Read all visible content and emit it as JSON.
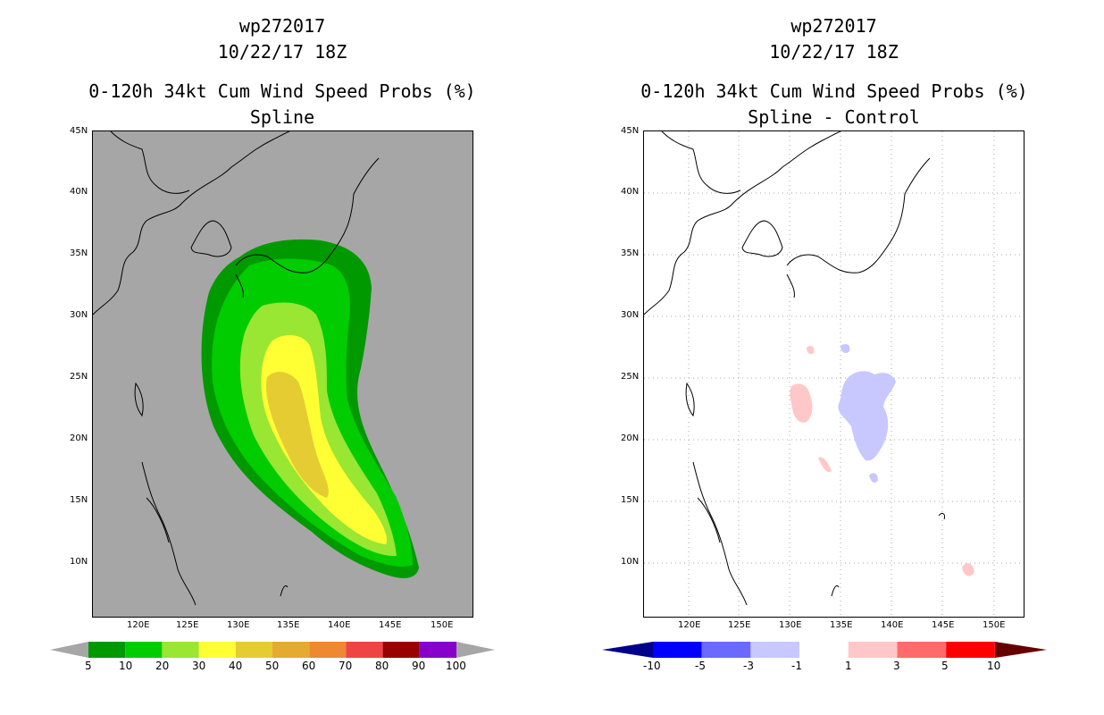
{
  "panels": [
    {
      "storm": "wp272017",
      "date": "10/22/17 18Z",
      "product": "0-120h 34kt Cum Wind Speed Probs (%)",
      "subtitle": "Spline",
      "lat_labels": [
        "45N",
        "40N",
        "35N",
        "30N",
        "25N",
        "20N",
        "15N",
        "10N"
      ],
      "lon_labels": [
        "120E",
        "125E",
        "130E",
        "135E",
        "140E",
        "145E",
        "150E"
      ],
      "colorbar": {
        "labels": [
          "5",
          "10",
          "20",
          "30",
          "40",
          "50",
          "60",
          "70",
          "80",
          "90",
          "100"
        ],
        "colors": [
          "#009900",
          "#00cc00",
          "#99e633",
          "#ffff33",
          "#e6cc33",
          "#e6aa33",
          "#ee8833",
          "#ee4444",
          "#990000",
          "#8800cc"
        ]
      }
    },
    {
      "storm": "wp272017",
      "date": "10/22/17 18Z",
      "product": "0-120h 34kt Cum Wind Speed Probs (%)",
      "subtitle": "Spline - Control",
      "lat_labels": [
        "45N",
        "40N",
        "35N",
        "30N",
        "25N",
        "20N",
        "15N",
        "10N"
      ],
      "lon_labels": [
        "120E",
        "125E",
        "130E",
        "135E",
        "140E",
        "145E",
        "150E"
      ],
      "colorbar": {
        "labels": [
          "-10",
          "-5",
          "-3",
          "-1",
          "1",
          "3",
          "5",
          "10"
        ],
        "colors": [
          "#0000ff",
          "#6a6aff",
          "#c8c8ff",
          "#ffffff",
          "#ffc8c8",
          "#ff6a6a",
          "#ff0000"
        ]
      }
    }
  ]
}
